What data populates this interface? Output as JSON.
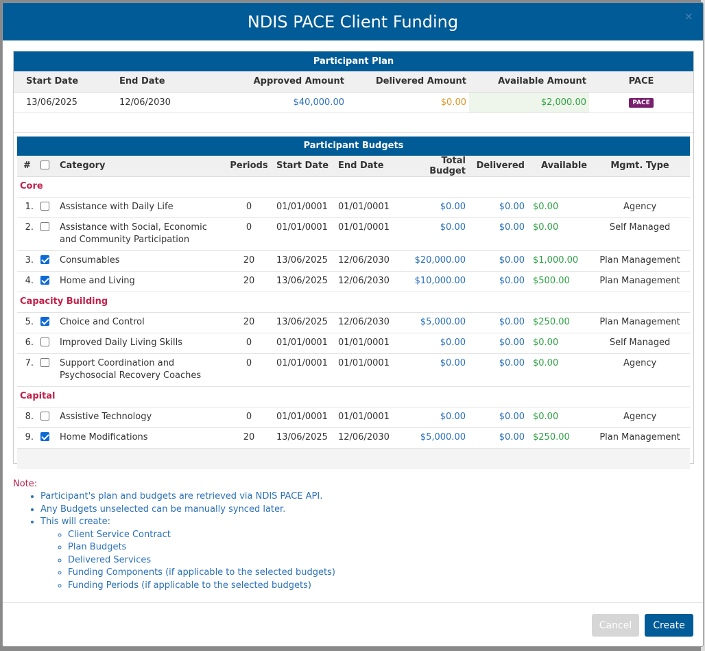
{
  "modal": {
    "title": "NDIS PACE Client Funding",
    "close": "×"
  },
  "plan": {
    "title": "Participant Plan",
    "headers": [
      "Start Date",
      "End Date",
      "Approved Amount",
      "Delivered Amount",
      "Available Amount",
      "PACE"
    ],
    "row": {
      "start": "13/06/2025",
      "end": "12/06/2030",
      "approved": "$40,000.00",
      "delivered": "$0.00",
      "available": "$2,000.00",
      "badge": "PACE"
    }
  },
  "budgets": {
    "title": "Participant Budgets",
    "headers": [
      "#",
      "",
      "Category",
      "Periods",
      "Start Date",
      "End Date",
      "Total Budget",
      "Delivered",
      "Available",
      "Mgmt. Type"
    ],
    "groups": [
      {
        "name": "Core",
        "rows": [
          {
            "num": "1.",
            "checked": false,
            "category": "Assistance with Daily Life",
            "periods": "0",
            "start": "01/01/0001",
            "end": "01/01/0001",
            "total": "$0.00",
            "delivered": "$0.00",
            "available": "$0.00",
            "mgmt": "Agency"
          },
          {
            "num": "2.",
            "checked": false,
            "category": "Assistance with Social, Economic and Community Participation",
            "periods": "0",
            "start": "01/01/0001",
            "end": "01/01/0001",
            "total": "$0.00",
            "delivered": "$0.00",
            "available": "$0.00",
            "mgmt": "Self Managed"
          },
          {
            "num": "3.",
            "checked": true,
            "category": "Consumables",
            "periods": "20",
            "start": "13/06/2025",
            "end": "12/06/2030",
            "total": "$20,000.00",
            "delivered": "$0.00",
            "available": "$1,000.00",
            "mgmt": "Plan Management"
          },
          {
            "num": "4.",
            "checked": true,
            "category": "Home and Living",
            "periods": "20",
            "start": "13/06/2025",
            "end": "12/06/2030",
            "total": "$10,000.00",
            "delivered": "$0.00",
            "available": "$500.00",
            "mgmt": "Plan Management"
          }
        ]
      },
      {
        "name": "Capacity Building",
        "rows": [
          {
            "num": "5.",
            "checked": true,
            "category": "Choice and Control",
            "periods": "20",
            "start": "13/06/2025",
            "end": "12/06/2030",
            "total": "$5,000.00",
            "delivered": "$0.00",
            "available": "$250.00",
            "mgmt": "Plan Management"
          },
          {
            "num": "6.",
            "checked": false,
            "category": "Improved Daily Living Skills",
            "periods": "0",
            "start": "01/01/0001",
            "end": "01/01/0001",
            "total": "$0.00",
            "delivered": "$0.00",
            "available": "$0.00",
            "mgmt": "Self Managed"
          },
          {
            "num": "7.",
            "checked": false,
            "category": "Support Coordination and Psychosocial Recovery Coaches",
            "periods": "0",
            "start": "01/01/0001",
            "end": "01/01/0001",
            "total": "$0.00",
            "delivered": "$0.00",
            "available": "$0.00",
            "mgmt": "Agency"
          }
        ]
      },
      {
        "name": "Capital",
        "rows": [
          {
            "num": "8.",
            "checked": false,
            "category": "Assistive Technology",
            "periods": "0",
            "start": "01/01/0001",
            "end": "01/01/0001",
            "total": "$0.00",
            "delivered": "$0.00",
            "available": "$0.00",
            "mgmt": "Agency"
          },
          {
            "num": "9.",
            "checked": true,
            "category": "Home Modifications",
            "periods": "20",
            "start": "13/06/2025",
            "end": "12/06/2030",
            "total": "$5,000.00",
            "delivered": "$0.00",
            "available": "$250.00",
            "mgmt": "Plan Management"
          }
        ]
      }
    ]
  },
  "notes": {
    "label": "Note:",
    "items": [
      "Participant's plan and budgets are retrieved via NDIS PACE API.",
      "Any Budgets unselected can be manually synced later.",
      "This will create:"
    ],
    "sub_items": [
      "Client Service Contract",
      "Plan Budgets",
      "Delivered Services",
      "Funding Components (if applicable to the selected budgets)",
      "Funding Periods (if applicable to the selected budgets)"
    ]
  },
  "footer": {
    "cancel": "Cancel",
    "create": "Create"
  },
  "colors": {
    "header_blue": "#005b96",
    "group_red": "#c0214a",
    "money_blue": "#2a70b8",
    "money_green": "#2ea043",
    "money_orange": "#e0931e",
    "badge_purple": "#7a1f6e"
  }
}
